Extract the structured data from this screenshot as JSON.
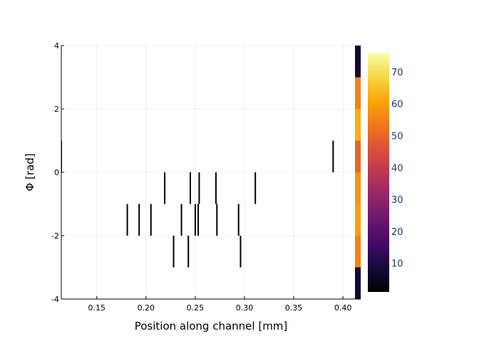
{
  "chart_data": {
    "type": "heatmap",
    "title": "",
    "xlabel": "Position along channel [mm]",
    "ylabel": "Φ [rad]",
    "xlim": [
      0.114,
      0.418
    ],
    "ylim": [
      -4,
      4
    ],
    "x_ticks": [
      0.15,
      0.2,
      0.25,
      0.3,
      0.35,
      0.4
    ],
    "x_tick_labels": [
      "0.15",
      "0.20",
      "0.25",
      "0.30",
      "0.35",
      "0.40"
    ],
    "y_ticks": [
      -4,
      -2,
      0,
      2,
      4
    ],
    "y_tick_labels": [
      "-4",
      "-2",
      "0",
      "2",
      "4"
    ],
    "grid": true,
    "colormap": "inferno",
    "colorbar": {
      "min": 1,
      "max": 76,
      "ticks": [
        10,
        20,
        30,
        40,
        50,
        60,
        70
      ],
      "tick_labels": [
        "10",
        "20",
        "30",
        "40",
        "50",
        "60",
        "70"
      ]
    },
    "cells": [
      {
        "x": 0.114,
        "phi": [
          0,
          1
        ],
        "value": 1
      },
      {
        "x": 0.181,
        "phi": [
          -2,
          -1
        ],
        "value": 1
      },
      {
        "x": 0.193,
        "phi": [
          -2,
          -1
        ],
        "value": 1
      },
      {
        "x": 0.205,
        "phi": [
          -2,
          -1
        ],
        "value": 1
      },
      {
        "x": 0.219,
        "phi": [
          -1,
          0
        ],
        "value": 1
      },
      {
        "x": 0.228,
        "phi": [
          -3,
          -2
        ],
        "value": 1
      },
      {
        "x": 0.236,
        "phi": [
          -2,
          -1
        ],
        "value": 1
      },
      {
        "x": 0.243,
        "phi": [
          -3,
          -2
        ],
        "value": 1
      },
      {
        "x": 0.245,
        "phi": [
          -1,
          0
        ],
        "value": 1
      },
      {
        "x": 0.25,
        "phi": [
          -2,
          -1
        ],
        "value": 1
      },
      {
        "x": 0.253,
        "phi": [
          -2,
          -1
        ],
        "value": 1
      },
      {
        "x": 0.254,
        "phi": [
          -1,
          0
        ],
        "value": 1
      },
      {
        "x": 0.271,
        "phi": [
          -1,
          0
        ],
        "value": 1
      },
      {
        "x": 0.272,
        "phi": [
          -2,
          -1
        ],
        "value": 1
      },
      {
        "x": 0.294,
        "phi": [
          -2,
          -1
        ],
        "value": 1
      },
      {
        "x": 0.296,
        "phi": [
          -3,
          -2
        ],
        "value": 1
      },
      {
        "x": 0.311,
        "phi": [
          -1,
          0
        ],
        "value": 1
      },
      {
        "x": 0.39,
        "phi": [
          0,
          1
        ],
        "value": 1
      },
      {
        "x": 0.416,
        "phi": [
          3,
          4
        ],
        "value": 8
      },
      {
        "x": 0.416,
        "phi": [
          2,
          3
        ],
        "value": 55
      },
      {
        "x": 0.416,
        "phi": [
          1,
          2
        ],
        "value": 62
      },
      {
        "x": 0.416,
        "phi": [
          0,
          1
        ],
        "value": 50
      },
      {
        "x": 0.416,
        "phi": [
          -1,
          0
        ],
        "value": 58
      },
      {
        "x": 0.416,
        "phi": [
          -2,
          -1
        ],
        "value": 60
      },
      {
        "x": 0.416,
        "phi": [
          -3,
          -2
        ],
        "value": 55
      },
      {
        "x": 0.416,
        "phi": [
          -4,
          -3
        ],
        "value": 8
      }
    ]
  }
}
